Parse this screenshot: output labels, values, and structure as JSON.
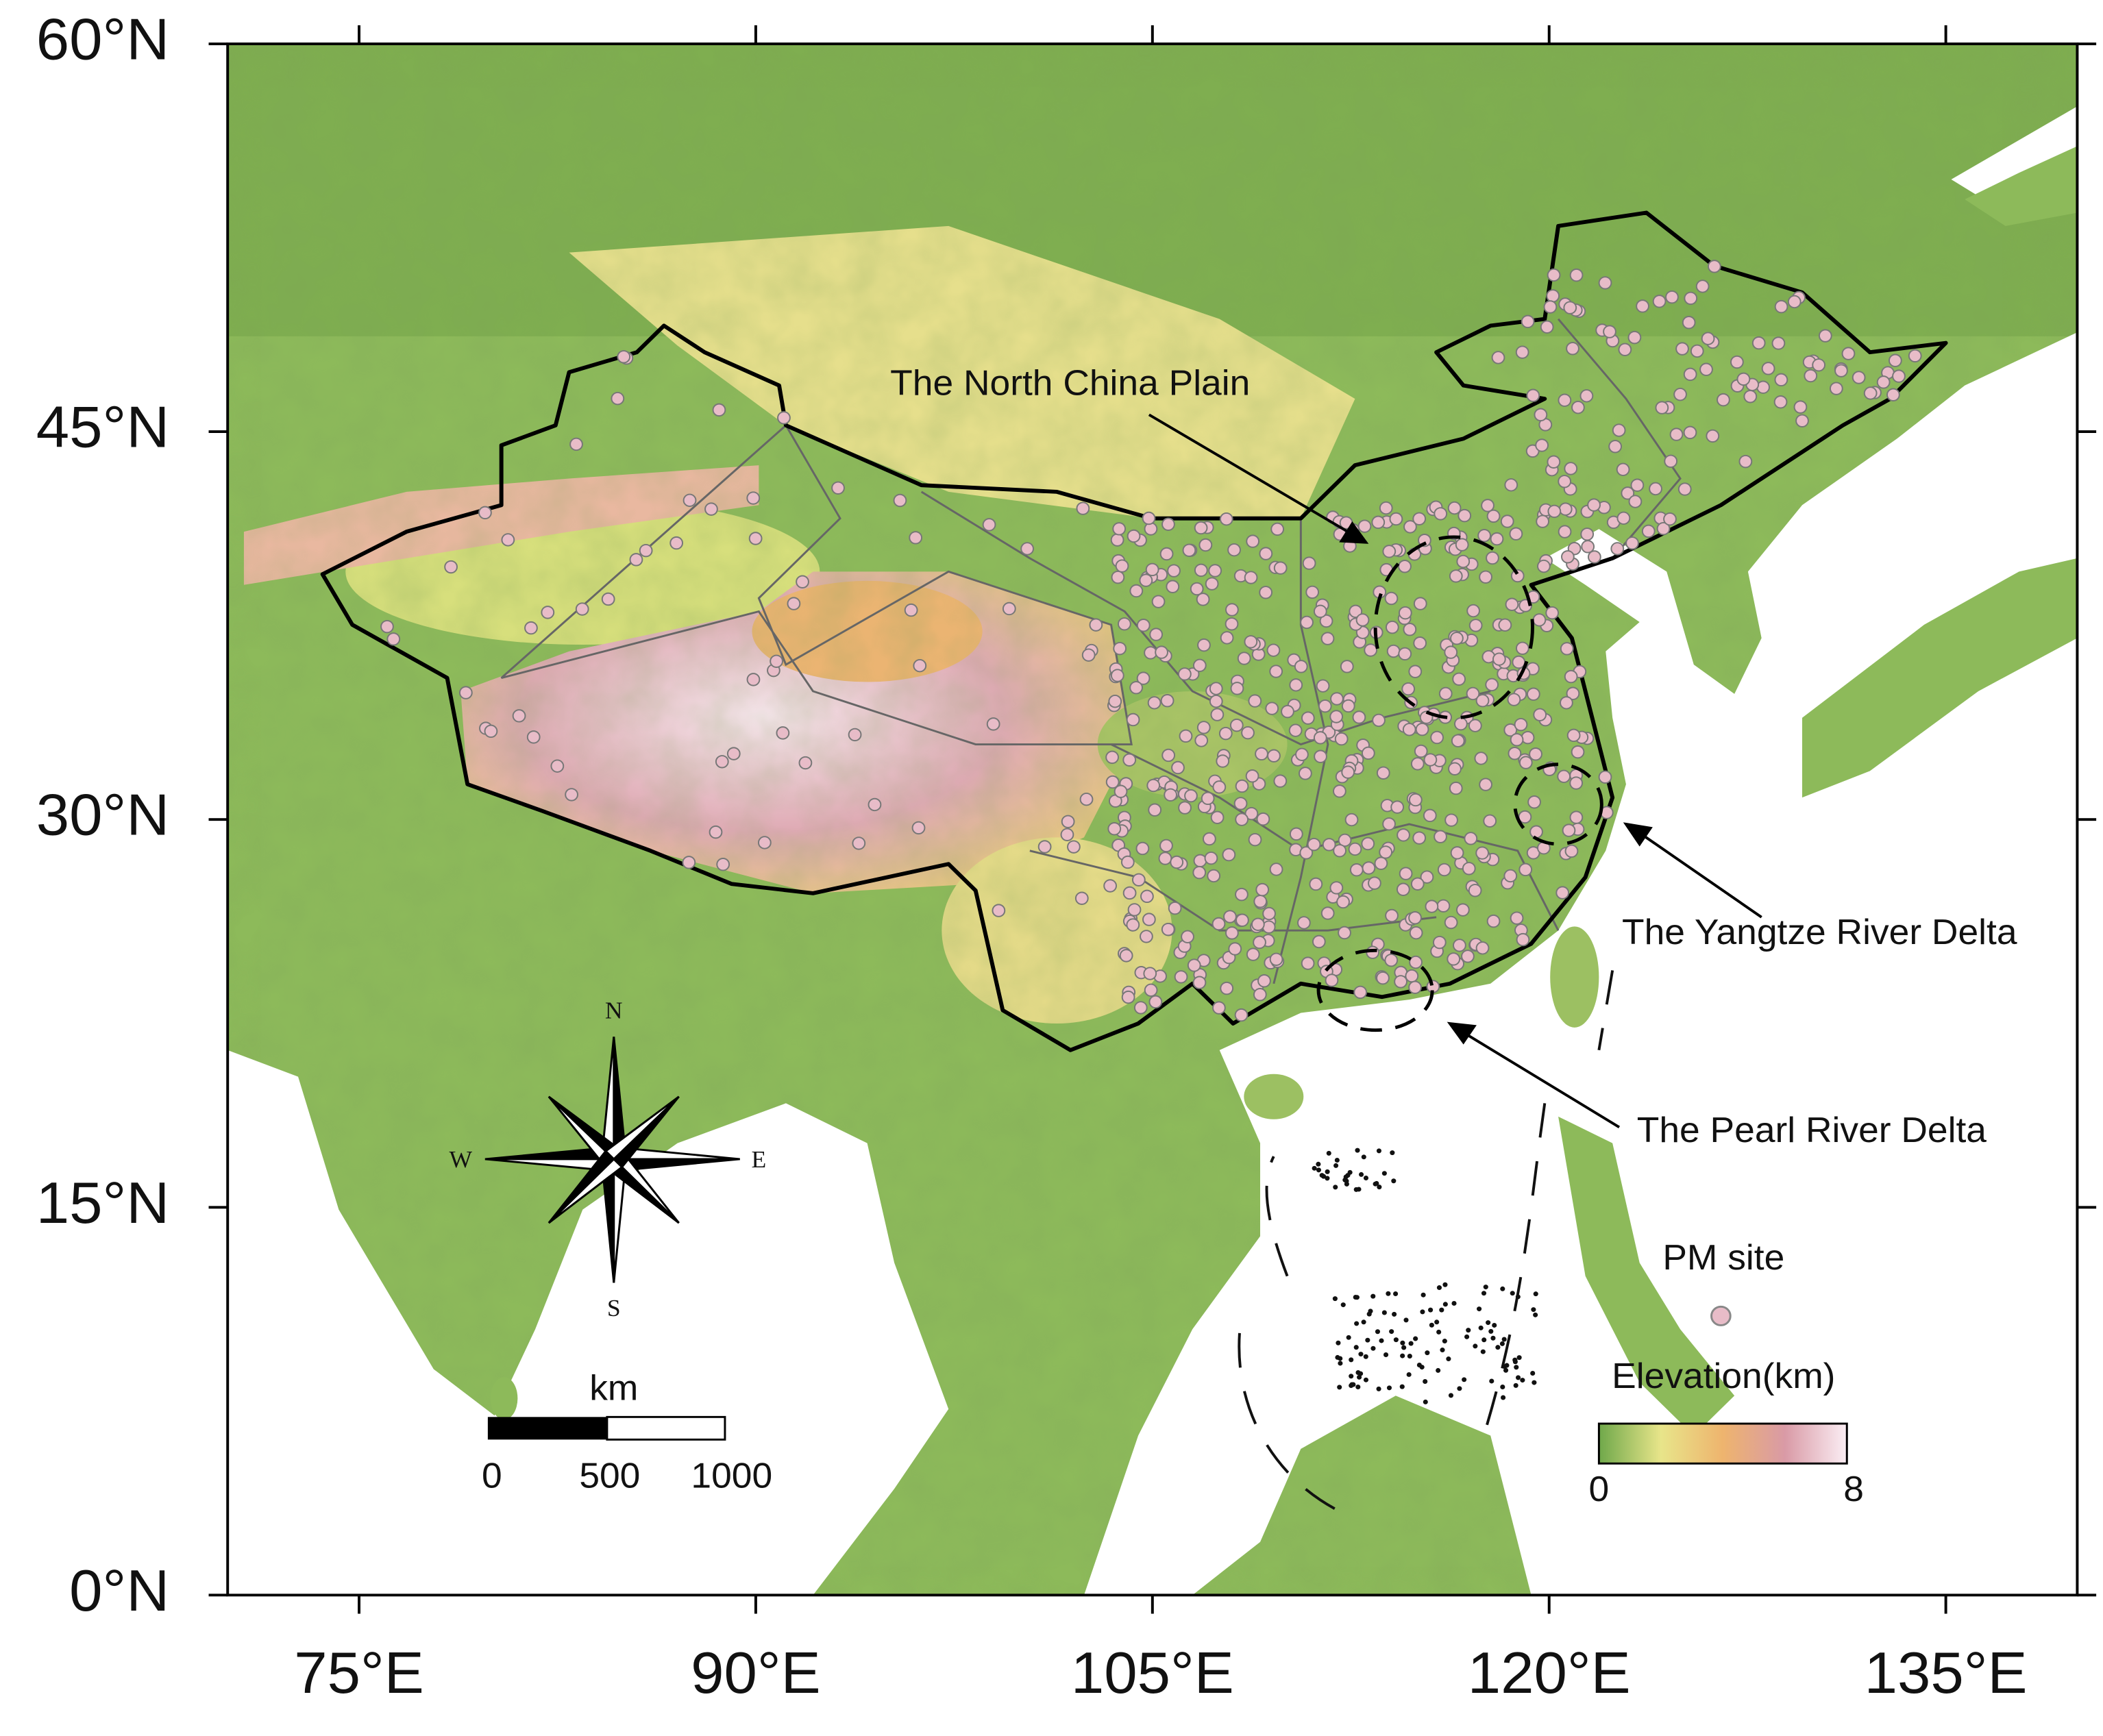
{
  "map": {
    "lat_ticks": [
      "60°N",
      "45°N",
      "30°N",
      "15°N",
      "0°N"
    ],
    "lon_ticks": [
      "75°E",
      "90°E",
      "105°E",
      "120°E",
      "135°E"
    ],
    "annotations": {
      "north_china_plain": "The North China Plain",
      "yangtze_river_delta": "The Yangtze River Delta",
      "pearl_river_delta": "The Pearl River Delta"
    },
    "compass": {
      "n": "N",
      "s": "S",
      "e": "E",
      "w": "W"
    },
    "scale_bar": {
      "unit": "km",
      "labels": [
        "0",
        "500",
        "1000"
      ]
    },
    "legend": {
      "site": "PM site",
      "elevation_title": "Elevation(km)",
      "colorbar_labels": [
        "0",
        "8"
      ]
    }
  }
}
